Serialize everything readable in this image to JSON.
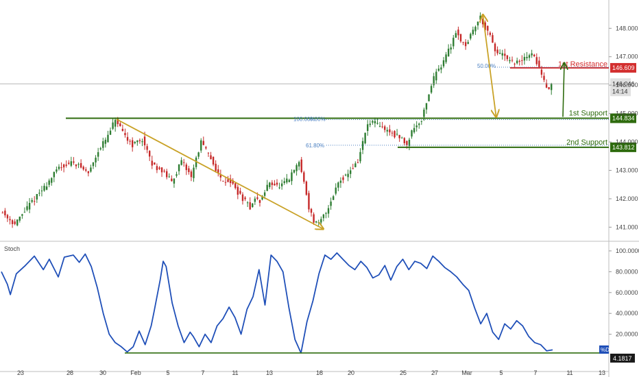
{
  "colors": {
    "candle_up": "#2e7d32",
    "candle_down": "#c62828",
    "support": "#2e6b0e",
    "resistance": "#d32f2f",
    "arrow_gold": "#c9a227",
    "fib_blue": "#4a7fc1",
    "stoch_line": "#1f4fb8",
    "grid": "#e6e6e6",
    "axis_text": "#444444"
  },
  "chart_data": [
    {
      "type": "candlestick",
      "series_label": "",
      "ylim": [
        140.6,
        148.9
      ],
      "y_ticks": [
        "148.000",
        "147.000",
        "146.000",
        "145.000",
        "144.000",
        "143.000",
        "142.000",
        "141.000"
      ],
      "x_ticks": [
        "23",
        "28",
        "30",
        "Feb",
        "5",
        "7",
        "11",
        "13",
        "18",
        "20",
        "25",
        "27",
        "Mar",
        "5",
        "7",
        "11",
        "13"
      ],
      "price_path": [
        [
          0,
          141.6
        ],
        [
          6,
          141.1
        ],
        [
          12,
          141.8
        ],
        [
          18,
          142.4
        ],
        [
          24,
          143.1
        ],
        [
          30,
          143.3
        ],
        [
          36,
          142.9
        ],
        [
          40,
          143.7
        ],
        [
          44,
          144.2
        ],
        [
          47,
          144.8
        ],
        [
          50,
          144.3
        ],
        [
          54,
          143.9
        ],
        [
          58,
          144.1
        ],
        [
          62,
          143.2
        ],
        [
          66,
          143.0
        ],
        [
          70,
          142.6
        ],
        [
          74,
          143.3
        ],
        [
          78,
          142.8
        ],
        [
          82,
          144.0
        ],
        [
          86,
          143.4
        ],
        [
          90,
          142.7
        ],
        [
          94,
          142.6
        ],
        [
          98,
          142.1
        ],
        [
          102,
          141.7
        ],
        [
          104,
          142.0
        ],
        [
          106,
          141.9
        ],
        [
          110,
          142.6
        ],
        [
          114,
          142.4
        ],
        [
          118,
          142.7
        ],
        [
          122,
          143.3
        ],
        [
          124,
          142.6
        ],
        [
          126,
          141.7
        ],
        [
          128,
          141.2
        ],
        [
          130,
          141.1
        ],
        [
          134,
          141.7
        ],
        [
          138,
          142.6
        ],
        [
          142,
          142.9
        ],
        [
          146,
          143.3
        ],
        [
          148,
          144.0
        ],
        [
          150,
          144.6
        ],
        [
          152,
          144.7
        ],
        [
          156,
          144.5
        ],
        [
          160,
          144.3
        ],
        [
          164,
          144.1
        ],
        [
          166,
          143.9
        ],
        [
          168,
          144.4
        ],
        [
          172,
          144.8
        ],
        [
          174,
          145.4
        ],
        [
          176,
          146.0
        ],
        [
          178,
          146.5
        ],
        [
          180,
          146.7
        ],
        [
          184,
          147.4
        ],
        [
          186,
          147.9
        ],
        [
          188,
          147.6
        ],
        [
          190,
          147.4
        ],
        [
          194,
          148.1
        ],
        [
          196,
          148.4
        ],
        [
          198,
          148.0
        ],
        [
          200,
          147.7
        ],
        [
          202,
          147.2
        ],
        [
          206,
          147.0
        ],
        [
          208,
          146.8
        ],
        [
          212,
          146.8
        ],
        [
          216,
          147.1
        ],
        [
          218,
          147.0
        ],
        [
          220,
          146.6
        ],
        [
          222,
          146.1
        ],
        [
          224,
          145.9
        ],
        [
          225,
          146.0
        ]
      ],
      "levels": [
        {
          "label": "1st Resistance",
          "value": 146.609,
          "price_tag": "146.609"
        },
        {
          "label": "1st Support",
          "value": 144.834,
          "price_tag": "144.834"
        },
        {
          "label": "2nd Support",
          "value": 143.812,
          "price_tag": "143.812"
        }
      ],
      "current_price": {
        "value": 146.046,
        "price_tag": "146.046",
        "countdown": "14:14"
      },
      "fib_labels": [
        {
          "label": "50.00%",
          "value": 146.609
        },
        {
          "label": "100.00%",
          "value": 144.834
        },
        {
          "label": "0.00%",
          "value": 144.834
        },
        {
          "label": "61.80%",
          "value": 143.812
        }
      ]
    },
    {
      "type": "line",
      "title": "Stoch",
      "ylim": [
        0,
        100
      ],
      "y_ticks": [
        "100.0000",
        "80.0000",
        "60.0000",
        "40.0000",
        "20.0000"
      ],
      "series_tag": "%D",
      "last_value": "4.1817",
      "values": [
        [
          0,
          80
        ],
        [
          2,
          68
        ],
        [
          3,
          58
        ],
        [
          5,
          78
        ],
        [
          8,
          86
        ],
        [
          11,
          95
        ],
        [
          14,
          82
        ],
        [
          16,
          92
        ],
        [
          19,
          75
        ],
        [
          21,
          94
        ],
        [
          24,
          96
        ],
        [
          26,
          89
        ],
        [
          28,
          97
        ],
        [
          30,
          85
        ],
        [
          32,
          65
        ],
        [
          34,
          40
        ],
        [
          36,
          20
        ],
        [
          38,
          12
        ],
        [
          40,
          8
        ],
        [
          42,
          3
        ],
        [
          44,
          8
        ],
        [
          46,
          23
        ],
        [
          48,
          10
        ],
        [
          50,
          28
        ],
        [
          51,
          42
        ],
        [
          53,
          72
        ],
        [
          54,
          90
        ],
        [
          55,
          85
        ],
        [
          57,
          50
        ],
        [
          59,
          28
        ],
        [
          61,
          12
        ],
        [
          63,
          22
        ],
        [
          64,
          18
        ],
        [
          66,
          8
        ],
        [
          68,
          20
        ],
        [
          70,
          12
        ],
        [
          72,
          28
        ],
        [
          74,
          35
        ],
        [
          76,
          46
        ],
        [
          78,
          36
        ],
        [
          80,
          20
        ],
        [
          82,
          44
        ],
        [
          84,
          56
        ],
        [
          86,
          82
        ],
        [
          88,
          48
        ],
        [
          90,
          96
        ],
        [
          92,
          90
        ],
        [
          94,
          80
        ],
        [
          96,
          45
        ],
        [
          98,
          15
        ],
        [
          100,
          2
        ],
        [
          102,
          32
        ],
        [
          104,
          52
        ],
        [
          106,
          78
        ],
        [
          108,
          96
        ],
        [
          110,
          92
        ],
        [
          112,
          98
        ],
        [
          114,
          92
        ],
        [
          116,
          86
        ],
        [
          118,
          82
        ],
        [
          120,
          90
        ],
        [
          122,
          84
        ],
        [
          124,
          74
        ],
        [
          126,
          77
        ],
        [
          128,
          86
        ],
        [
          130,
          72
        ],
        [
          132,
          85
        ],
        [
          134,
          92
        ],
        [
          136,
          82
        ],
        [
          138,
          90
        ],
        [
          140,
          88
        ],
        [
          142,
          83
        ],
        [
          144,
          95
        ],
        [
          146,
          90
        ],
        [
          148,
          84
        ],
        [
          150,
          80
        ],
        [
          152,
          75
        ],
        [
          154,
          68
        ],
        [
          156,
          62
        ],
        [
          158,
          45
        ],
        [
          160,
          30
        ],
        [
          162,
          40
        ],
        [
          164,
          22
        ],
        [
          166,
          15
        ],
        [
          168,
          30
        ],
        [
          170,
          25
        ],
        [
          172,
          33
        ],
        [
          174,
          28
        ],
        [
          176,
          18
        ],
        [
          178,
          12
        ],
        [
          180,
          10
        ],
        [
          182,
          4
        ],
        [
          184,
          5
        ]
      ],
      "levels": [
        {
          "value": 2
        }
      ]
    }
  ]
}
